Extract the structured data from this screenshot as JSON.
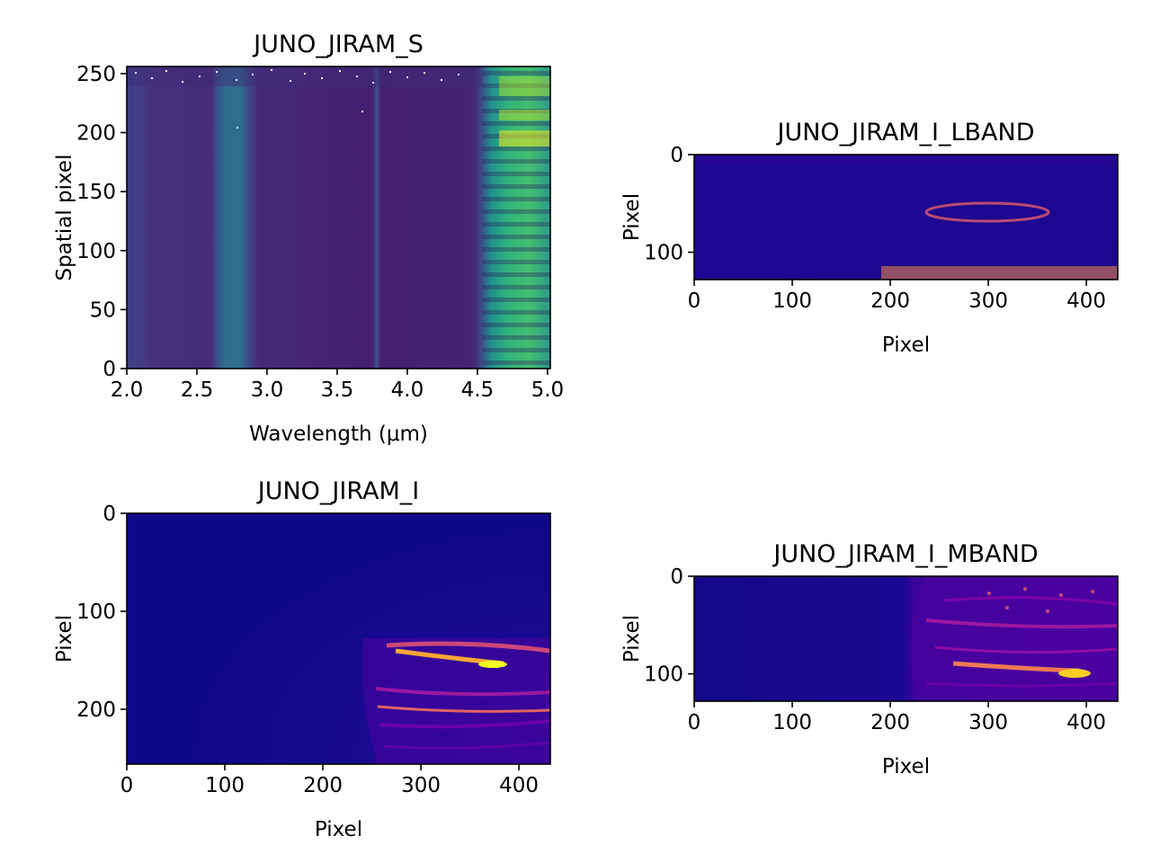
{
  "chart_data": [
    {
      "type": "heatmap",
      "title": "JUNO_JIRAM_S",
      "xlabel": "Wavelength (μm)",
      "ylabel": "Spatial pixel",
      "xlim": [
        2.0,
        5.02
      ],
      "ylim": [
        0,
        256
      ],
      "y_inverted": false,
      "colormap": "viridis",
      "xticks": [
        {
          "v": 2.0,
          "label": "2.0"
        },
        {
          "v": 2.5,
          "label": "2.5"
        },
        {
          "v": 3.0,
          "label": "3.0"
        },
        {
          "v": 3.5,
          "label": "3.5"
        },
        {
          "v": 4.0,
          "label": "4.0"
        },
        {
          "v": 4.5,
          "label": "4.5"
        },
        {
          "v": 5.0,
          "label": "5.0"
        }
      ],
      "yticks": [
        {
          "v": 0,
          "label": "0"
        },
        {
          "v": 50,
          "label": "50"
        },
        {
          "v": 100,
          "label": "100"
        },
        {
          "v": 150,
          "label": "150"
        },
        {
          "v": 200,
          "label": "200"
        },
        {
          "v": 250,
          "label": "250"
        }
      ]
    },
    {
      "type": "heatmap",
      "title": "JUNO_JIRAM_I_LBAND",
      "xlabel": "Pixel",
      "ylabel": "Pixel",
      "xlim": [
        0,
        432
      ],
      "ylim": [
        128,
        0
      ],
      "y_inverted": true,
      "colormap": "plasma",
      "xticks": [
        {
          "v": 0,
          "label": "0"
        },
        {
          "v": 100,
          "label": "100"
        },
        {
          "v": 200,
          "label": "200"
        },
        {
          "v": 300,
          "label": "300"
        },
        {
          "v": 400,
          "label": "400"
        }
      ],
      "yticks": [
        {
          "v": 0,
          "label": "0"
        },
        {
          "v": 100,
          "label": "100"
        }
      ]
    },
    {
      "type": "heatmap",
      "title": "JUNO_JIRAM_I",
      "xlabel": "Pixel",
      "ylabel": "Pixel",
      "xlim": [
        0,
        432
      ],
      "ylim": [
        256,
        0
      ],
      "y_inverted": true,
      "colormap": "plasma",
      "xticks": [
        {
          "v": 0,
          "label": "0"
        },
        {
          "v": 100,
          "label": "100"
        },
        {
          "v": 200,
          "label": "200"
        },
        {
          "v": 300,
          "label": "300"
        },
        {
          "v": 400,
          "label": "400"
        }
      ],
      "yticks": [
        {
          "v": 0,
          "label": "0"
        },
        {
          "v": 100,
          "label": "100"
        },
        {
          "v": 200,
          "label": "200"
        }
      ]
    },
    {
      "type": "heatmap",
      "title": "JUNO_JIRAM_I_MBAND",
      "xlabel": "Pixel",
      "ylabel": "Pixel",
      "xlim": [
        0,
        432
      ],
      "ylim": [
        128,
        0
      ],
      "y_inverted": true,
      "colormap": "plasma",
      "xticks": [
        {
          "v": 0,
          "label": "0"
        },
        {
          "v": 100,
          "label": "100"
        },
        {
          "v": 200,
          "label": "200"
        },
        {
          "v": 300,
          "label": "300"
        },
        {
          "v": 400,
          "label": "400"
        }
      ],
      "yticks": [
        {
          "v": 0,
          "label": "0"
        },
        {
          "v": 100,
          "label": "100"
        }
      ]
    }
  ]
}
